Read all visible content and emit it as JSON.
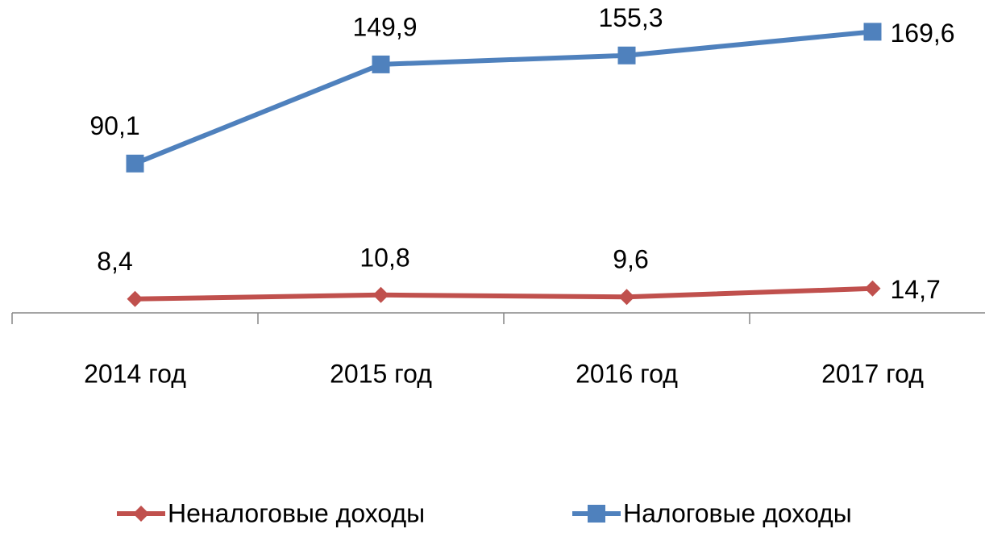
{
  "chart_data": {
    "type": "line",
    "categories": [
      "2014 год",
      "2015 год",
      "2016 год",
      "2017 год"
    ],
    "series": [
      {
        "name": "Неналоговые доходы",
        "color": "#c0504d",
        "marker": "diamond",
        "values": [
          8.4,
          10.8,
          9.6,
          14.7
        ],
        "value_labels": [
          "8,4",
          "10,8",
          "9,6",
          "14,7"
        ]
      },
      {
        "name": "Налоговые доходы",
        "color": "#4f81bd",
        "marker": "square",
        "values": [
          90.1,
          149.9,
          155.3,
          169.6
        ],
        "value_labels": [
          "90,1",
          "149,9",
          "155,3",
          "169,6"
        ]
      }
    ],
    "ylim": [
      0,
      180
    ],
    "legend": "bottom"
  }
}
